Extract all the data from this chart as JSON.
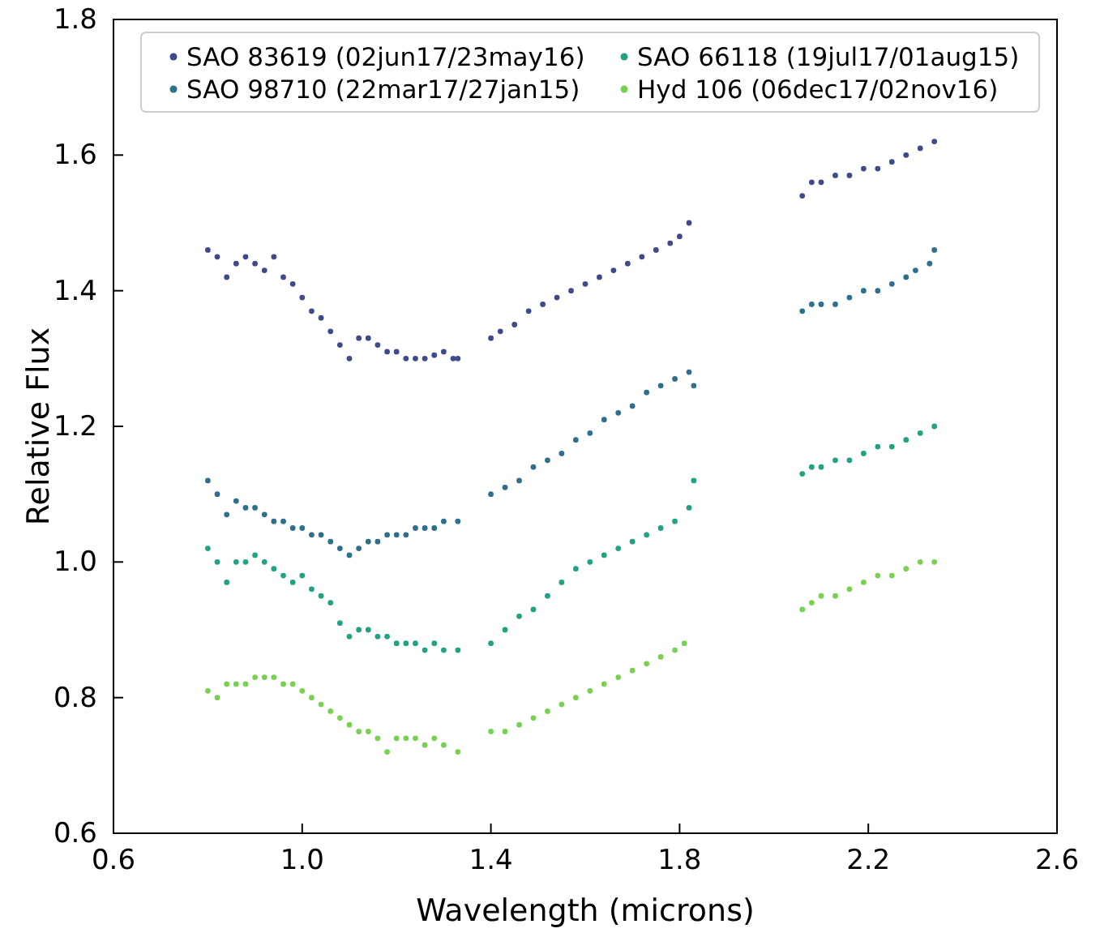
{
  "chart_data": {
    "type": "scatter",
    "xlabel": "Wavelength (microns)",
    "ylabel": "Relative Flux",
    "xlim": [
      0.6,
      2.6
    ],
    "xticks": [
      {
        "value": 0.6,
        "label": "0.6"
      },
      {
        "value": 1.0,
        "label": "1.0"
      },
      1.4,
      1.8,
      2.2,
      2.6
    ],
    "ylim": [
      0.6,
      1.8
    ],
    "yticks": [
      {
        "value": 0.6,
        "label": "0.6"
      },
      {
        "value": 0.8,
        "label": "0.8"
      },
      {
        "value": 1.0,
        "label": "1.0"
      },
      1.2,
      1.4,
      1.6,
      1.8
    ],
    "legend": "top",
    "marker": "circle",
    "series": [
      {
        "name": "SAO 83619 (02jun17/23may16)",
        "color": "#3e4a89",
        "x": [
          0.8,
          0.82,
          0.84,
          0.86,
          0.88,
          0.9,
          0.92,
          0.94,
          0.96,
          0.98,
          1.0,
          1.02,
          1.04,
          1.06,
          1.08,
          1.1,
          1.12,
          1.14,
          1.16,
          1.18,
          1.2,
          1.22,
          1.24,
          1.26,
          1.28,
          1.3,
          1.32,
          1.33,
          1.4,
          1.42,
          1.45,
          1.48,
          1.51,
          1.54,
          1.57,
          1.6,
          1.63,
          1.66,
          1.69,
          1.72,
          1.75,
          1.78,
          1.8,
          1.82,
          2.06,
          2.08,
          2.1,
          2.13,
          2.16,
          2.19,
          2.22,
          2.25,
          2.28,
          2.31,
          2.34
        ],
        "values": [
          1.46,
          1.45,
          1.42,
          1.44,
          1.45,
          1.44,
          1.43,
          1.45,
          1.42,
          1.41,
          1.39,
          1.37,
          1.36,
          1.34,
          1.32,
          1.3,
          1.33,
          1.33,
          1.32,
          1.31,
          1.31,
          1.3,
          1.3,
          1.3,
          1.305,
          1.31,
          1.3,
          1.3,
          1.33,
          1.34,
          1.35,
          1.37,
          1.38,
          1.39,
          1.4,
          1.41,
          1.42,
          1.43,
          1.44,
          1.45,
          1.46,
          1.47,
          1.48,
          1.5,
          1.54,
          1.56,
          1.56,
          1.57,
          1.57,
          1.58,
          1.58,
          1.59,
          1.6,
          1.61,
          1.62
        ]
      },
      {
        "name": "SAO 98710 (22mar17/27jan15)",
        "color": "#2f6f8e",
        "x": [
          0.8,
          0.82,
          0.84,
          0.86,
          0.88,
          0.9,
          0.92,
          0.94,
          0.96,
          0.98,
          1.0,
          1.02,
          1.04,
          1.06,
          1.08,
          1.1,
          1.12,
          1.14,
          1.16,
          1.18,
          1.2,
          1.22,
          1.24,
          1.26,
          1.28,
          1.3,
          1.33,
          1.4,
          1.43,
          1.46,
          1.49,
          1.52,
          1.55,
          1.58,
          1.61,
          1.64,
          1.67,
          1.7,
          1.73,
          1.76,
          1.79,
          1.82,
          1.83,
          2.06,
          2.08,
          2.1,
          2.13,
          2.16,
          2.19,
          2.22,
          2.25,
          2.28,
          2.3,
          2.33,
          2.34
        ],
        "values": [
          1.12,
          1.1,
          1.07,
          1.09,
          1.08,
          1.08,
          1.07,
          1.06,
          1.06,
          1.05,
          1.05,
          1.04,
          1.04,
          1.03,
          1.02,
          1.01,
          1.02,
          1.03,
          1.03,
          1.04,
          1.04,
          1.04,
          1.05,
          1.05,
          1.05,
          1.06,
          1.06,
          1.1,
          1.11,
          1.12,
          1.14,
          1.15,
          1.16,
          1.18,
          1.19,
          1.21,
          1.22,
          1.23,
          1.25,
          1.26,
          1.27,
          1.28,
          1.26,
          1.37,
          1.38,
          1.38,
          1.38,
          1.39,
          1.4,
          1.4,
          1.41,
          1.42,
          1.43,
          1.44,
          1.46
        ]
      },
      {
        "name": "SAO 66118 (19jul17/01aug15)",
        "color": "#22a184",
        "x": [
          0.8,
          0.82,
          0.84,
          0.86,
          0.88,
          0.9,
          0.92,
          0.94,
          0.96,
          0.98,
          1.0,
          1.02,
          1.04,
          1.06,
          1.08,
          1.1,
          1.12,
          1.14,
          1.16,
          1.18,
          1.2,
          1.22,
          1.24,
          1.26,
          1.28,
          1.3,
          1.33,
          1.4,
          1.43,
          1.46,
          1.49,
          1.52,
          1.55,
          1.58,
          1.61,
          1.64,
          1.67,
          1.7,
          1.73,
          1.76,
          1.79,
          1.82,
          1.83,
          2.06,
          2.08,
          2.1,
          2.13,
          2.16,
          2.19,
          2.22,
          2.25,
          2.28,
          2.31,
          2.34
        ],
        "values": [
          1.02,
          1.0,
          0.97,
          1.0,
          1.0,
          1.01,
          1.0,
          0.99,
          0.98,
          0.97,
          0.98,
          0.96,
          0.95,
          0.94,
          0.91,
          0.89,
          0.9,
          0.9,
          0.89,
          0.89,
          0.88,
          0.88,
          0.88,
          0.87,
          0.88,
          0.87,
          0.87,
          0.88,
          0.9,
          0.92,
          0.93,
          0.95,
          0.97,
          0.99,
          1.0,
          1.01,
          1.02,
          1.03,
          1.04,
          1.05,
          1.06,
          1.08,
          1.12,
          1.13,
          1.14,
          1.14,
          1.15,
          1.15,
          1.16,
          1.17,
          1.17,
          1.18,
          1.19,
          1.2
        ]
      },
      {
        "name": "Hyd 106 (06dec17/02nov16)",
        "color": "#7ad151",
        "x": [
          0.8,
          0.82,
          0.84,
          0.86,
          0.88,
          0.9,
          0.92,
          0.94,
          0.96,
          0.98,
          1.0,
          1.02,
          1.04,
          1.06,
          1.08,
          1.1,
          1.12,
          1.14,
          1.16,
          1.18,
          1.2,
          1.22,
          1.24,
          1.26,
          1.28,
          1.3,
          1.33,
          1.4,
          1.43,
          1.46,
          1.49,
          1.52,
          1.55,
          1.58,
          1.61,
          1.64,
          1.67,
          1.7,
          1.73,
          1.76,
          1.79,
          1.81,
          2.06,
          2.08,
          2.1,
          2.13,
          2.16,
          2.19,
          2.22,
          2.25,
          2.28,
          2.31,
          2.34
        ],
        "values": [
          0.81,
          0.8,
          0.82,
          0.82,
          0.82,
          0.83,
          0.83,
          0.83,
          0.82,
          0.82,
          0.81,
          0.8,
          0.79,
          0.78,
          0.77,
          0.76,
          0.75,
          0.75,
          0.74,
          0.72,
          0.74,
          0.74,
          0.74,
          0.73,
          0.74,
          0.73,
          0.72,
          0.75,
          0.75,
          0.76,
          0.77,
          0.78,
          0.79,
          0.8,
          0.81,
          0.82,
          0.83,
          0.84,
          0.85,
          0.86,
          0.87,
          0.88,
          0.93,
          0.94,
          0.95,
          0.95,
          0.96,
          0.97,
          0.98,
          0.98,
          0.99,
          1.0,
          1.0
        ]
      }
    ]
  }
}
